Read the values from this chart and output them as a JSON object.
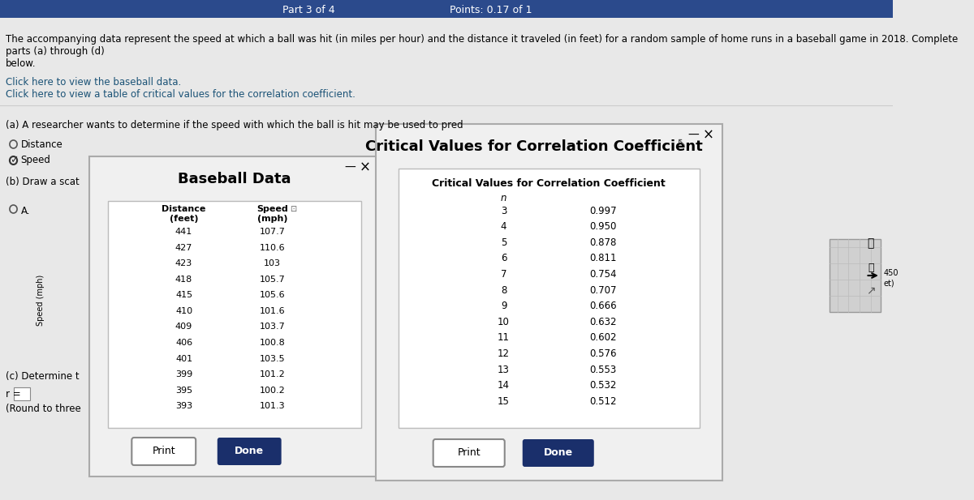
{
  "bg_color": "#e8e8e8",
  "top_bar_color": "#2b4a8c",
  "top_bar_text": "Part 3 of 4",
  "points_text": "Points: 0.17 of 1",
  "main_text": "The accompanying data represent the speed at which a ball was hit (in miles per hour) and the distance it traveled (in feet) for a random sample of home runs in a baseball game in 2018. Complete parts (a) through (d)\nbelow.",
  "link1": "Click here to view the baseball data.",
  "link2": "Click here to view a table of critical values for the correlation coefficient.",
  "part_a_text": "(a) A researcher wants to determine if the speed with which the ball is hit may be used to pred",
  "radio1": "Distance",
  "radio2": "Speed",
  "part_b_text": "(b) Draw a scat",
  "radio_a": "A.",
  "ylabel_text": "Speed (mph)",
  "part_c_text": "(c) Determine t",
  "r_label": "r =",
  "round_text": "(Round to three",
  "baseball_title": "Baseball Data",
  "baseball_col1": "Distance\n(feet)",
  "baseball_col2": "Speed\n(mph)",
  "baseball_distances": [
    441,
    427,
    423,
    418,
    415,
    410,
    409,
    406,
    401,
    399,
    395,
    393
  ],
  "baseball_speeds": [
    107.7,
    110.6,
    103,
    105.7,
    105.6,
    101.6,
    103.7,
    100.8,
    103.5,
    101.2,
    100.2,
    101.3
  ],
  "critical_window_title": "Critical Values for Correlation Coefficient",
  "critical_table_title": "Critical Values for Correlation Coefficient",
  "n_values": [
    3,
    4,
    5,
    6,
    7,
    8,
    9,
    10,
    11,
    12,
    13,
    14,
    15
  ],
  "critical_values": [
    0.997,
    0.95,
    0.878,
    0.811,
    0.754,
    0.707,
    0.666,
    0.632,
    0.602,
    0.576,
    0.553,
    0.532,
    0.512
  ],
  "window_bg": "#f0f0f0",
  "table_bg": "#ffffff",
  "button_done_color": "#1a2f6b",
  "button_text_color": "#ffffff",
  "button_print_bg": "#ffffff"
}
